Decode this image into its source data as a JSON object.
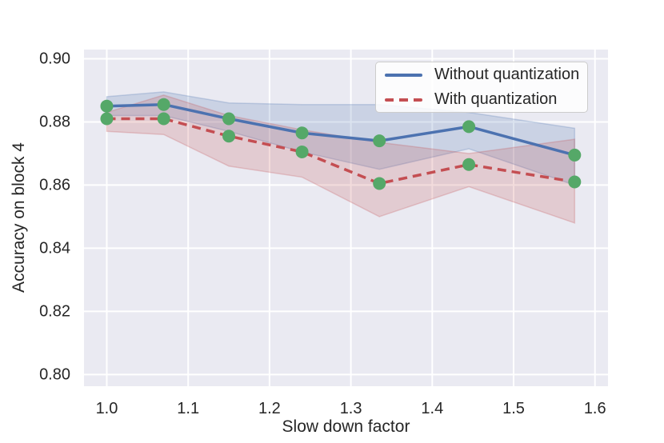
{
  "figure": {
    "background": "#ffffff",
    "plot_bg": "#eaeaf2",
    "grid_color": "#ffffff",
    "text_color": "#262626"
  },
  "chart_data": {
    "type": "line",
    "title": "",
    "xlabel": "Slow down factor",
    "ylabel": "Accuracy on block 4",
    "grid": true,
    "legend_position": "upper right",
    "xlim": [
      0.972,
      1.616
    ],
    "ylim": [
      0.7963,
      0.9029
    ],
    "x_ticks": [
      1.0,
      1.1,
      1.2,
      1.3,
      1.4,
      1.5,
      1.6
    ],
    "x_tick_labels": [
      "1.0",
      "1.1",
      "1.2",
      "1.3",
      "1.4",
      "1.5",
      "1.6"
    ],
    "y_ticks": [
      0.8,
      0.82,
      0.84,
      0.86,
      0.88,
      0.9
    ],
    "y_tick_labels": [
      "0.80",
      "0.82",
      "0.84",
      "0.86",
      "0.88",
      "0.90"
    ],
    "x": [
      1.0,
      1.07,
      1.15,
      1.24,
      1.335,
      1.445,
      1.575
    ],
    "marker_color": "#55a868",
    "series": [
      {
        "name": "Without quantization",
        "color": "#4c72b0",
        "line_style": "solid",
        "values": [
          0.885,
          0.8855,
          0.881,
          0.8765,
          0.874,
          0.8785,
          0.8695
        ],
        "band_upper": [
          0.888,
          0.8895,
          0.886,
          0.8855,
          0.8855,
          0.883,
          0.878
        ],
        "band_lower": [
          0.882,
          0.882,
          0.877,
          0.8705,
          0.865,
          0.8715,
          0.86
        ]
      },
      {
        "name": "With quantization",
        "color": "#c44e52",
        "line_style": "dashed",
        "values": [
          0.881,
          0.881,
          0.8755,
          0.8705,
          0.8605,
          0.8665,
          0.861
        ],
        "band_upper": [
          0.883,
          0.8885,
          0.882,
          0.8775,
          0.8735,
          0.87,
          0.8745
        ],
        "band_lower": [
          0.877,
          0.876,
          0.866,
          0.8625,
          0.85,
          0.8595,
          0.848
        ]
      }
    ]
  }
}
